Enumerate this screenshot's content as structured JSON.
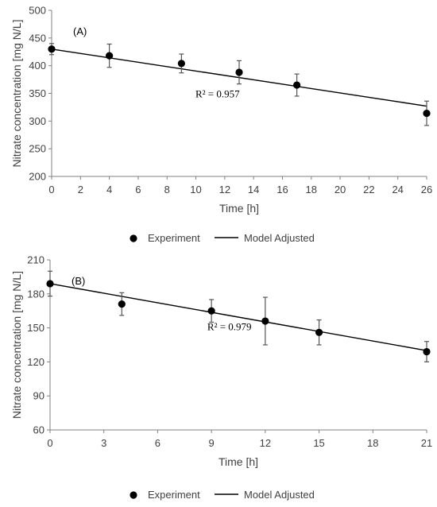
{
  "chart_data": [
    {
      "type": "scatter",
      "panel_label": "(A)",
      "xlabel": "Time [h]",
      "ylabel": "Nitrate concentration [mg N/L]",
      "xlim": [
        0,
        26
      ],
      "ylim": [
        200,
        500
      ],
      "xticks": [
        0,
        2,
        4,
        6,
        8,
        10,
        12,
        14,
        16,
        18,
        20,
        22,
        24,
        26
      ],
      "yticks": [
        200,
        250,
        300,
        350,
        400,
        450,
        500
      ],
      "series": [
        {
          "name": "Experiment",
          "kind": "points",
          "x": [
            0,
            4,
            9,
            13,
            17,
            26
          ],
          "y": [
            430,
            418,
            404,
            388,
            365,
            314
          ],
          "err": [
            10,
            21,
            17,
            21,
            20,
            22
          ]
        },
        {
          "name": "Model Adjusted",
          "kind": "line",
          "x": [
            0,
            26
          ],
          "y": [
            430,
            327
          ]
        }
      ],
      "annotation": {
        "text": "R² = 0.957",
        "x": 11.5,
        "y": 343
      },
      "legend": {
        "position": "bottom",
        "items": [
          "Experiment",
          "Model Adjusted"
        ]
      }
    },
    {
      "type": "scatter",
      "panel_label": "(B)",
      "xlabel": "Time [h]",
      "ylabel": "Nitrate concentration [mg N/L]",
      "xlim": [
        0,
        21
      ],
      "ylim": [
        60,
        210
      ],
      "xticks": [
        0,
        3,
        6,
        9,
        12,
        15,
        18,
        21
      ],
      "yticks": [
        60,
        90,
        120,
        150,
        180,
        210
      ],
      "series": [
        {
          "name": "Experiment",
          "kind": "points",
          "x": [
            0,
            4,
            9,
            12,
            15,
            21
          ],
          "y": [
            189,
            171,
            165,
            156,
            146,
            129
          ],
          "err": [
            11,
            10,
            10,
            21,
            11,
            9
          ]
        },
        {
          "name": "Model Adjusted",
          "kind": "line",
          "x": [
            0,
            21
          ],
          "y": [
            189,
            130
          ]
        }
      ],
      "annotation": {
        "text": "R² = 0.979",
        "x": 10.0,
        "y": 148
      },
      "legend": {
        "position": "bottom",
        "items": [
          "Experiment",
          "Model Adjusted"
        ]
      }
    }
  ]
}
